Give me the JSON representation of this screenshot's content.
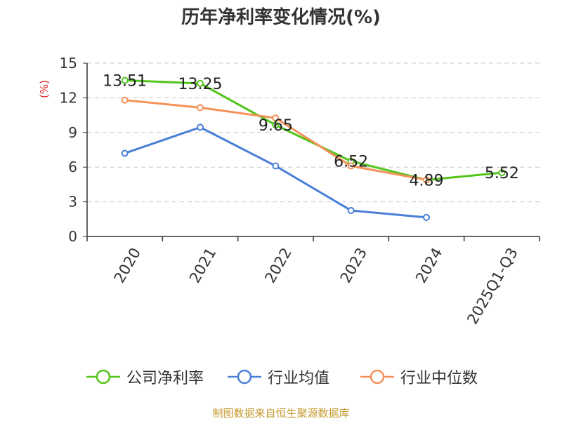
{
  "title": "历年净利率变化情况(%)",
  "source": "制图数据来自恒生聚源数据库",
  "chart_data": {
    "type": "line",
    "title": "历年净利率变化情况(%)",
    "ylabel": "(%)",
    "xlabel": "",
    "categories": [
      "2020",
      "2021",
      "2022",
      "2023",
      "2024",
      "2025Q1-Q3"
    ],
    "ylim": [
      0,
      15
    ],
    "yticks": [
      0,
      3,
      6,
      9,
      12,
      15
    ],
    "grid": "horizontal dashed",
    "legend_position": "bottom",
    "series": [
      {
        "name": "公司净利率",
        "color": "#52c41a",
        "values": [
          13.51,
          13.25,
          9.65,
          6.52,
          4.89,
          5.52
        ],
        "labels": [
          "13.51",
          "13.25",
          "9.65",
          "6.52",
          "4.89",
          "5.52"
        ]
      },
      {
        "name": "行业均值",
        "color": "#4a7fd8",
        "values": [
          7.2,
          9.45,
          6.1,
          2.25,
          1.65,
          null
        ]
      },
      {
        "name": "行业中位数",
        "color": "#f4925a",
        "values": [
          11.8,
          11.15,
          10.25,
          6.1,
          4.9,
          null
        ]
      }
    ]
  }
}
